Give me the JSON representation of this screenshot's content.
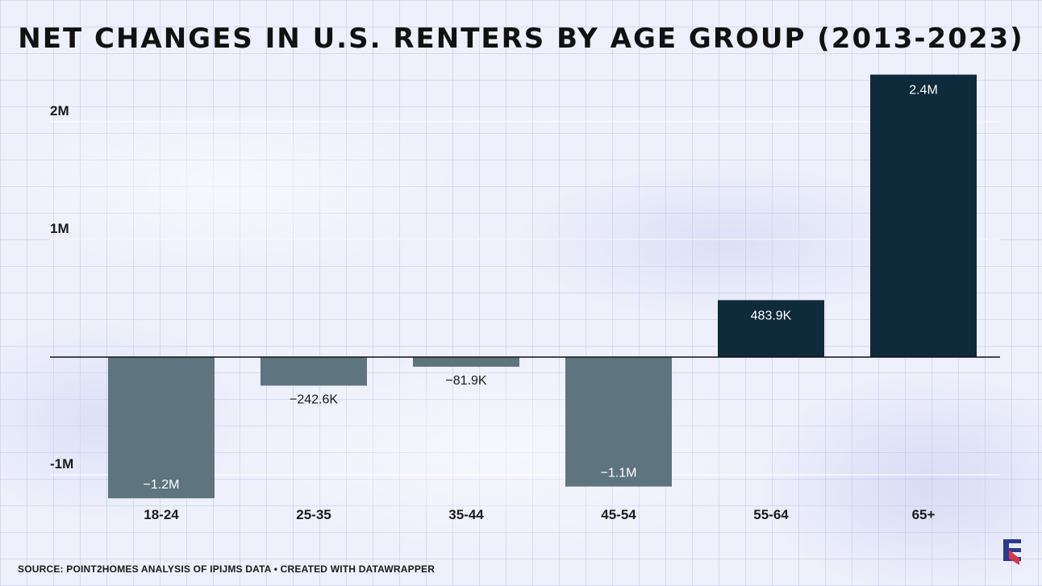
{
  "page": {
    "source_note": "SOURCE: POINT2HOMES ANALYSIS OF IPIJMS DATA • CREATED WITH DATAWRAPPER"
  },
  "logo": {
    "name": "point2homes-logo",
    "colors": [
      "#2b3a8f",
      "#d8344a"
    ]
  },
  "chart_data": {
    "type": "bar",
    "title": "NET CHANGES IN U.S. RENTERS BY AGE GROUP (2013-2023)",
    "xlabel": "",
    "ylabel": "",
    "categories": [
      "18-24",
      "25-35",
      "35-44",
      "45-54",
      "55-64",
      "65+"
    ],
    "values": [
      -1200000,
      -242600,
      -81900,
      -1100000,
      483900,
      2400000
    ],
    "value_labels": [
      "−1.2M",
      "−242.6K",
      "−81.9K",
      "−1.1M",
      "483.9K",
      "2.4M"
    ],
    "ylim": [
      -1200000,
      2400000
    ],
    "yticks": [
      {
        "value": 2000000,
        "label": "2M"
      },
      {
        "value": 1000000,
        "label": "1M"
      },
      {
        "value": -1000000,
        "label": "-1M"
      }
    ],
    "grid": true,
    "colors": {
      "positive": "#0f2a3a",
      "negative": "#5e7580"
    }
  }
}
